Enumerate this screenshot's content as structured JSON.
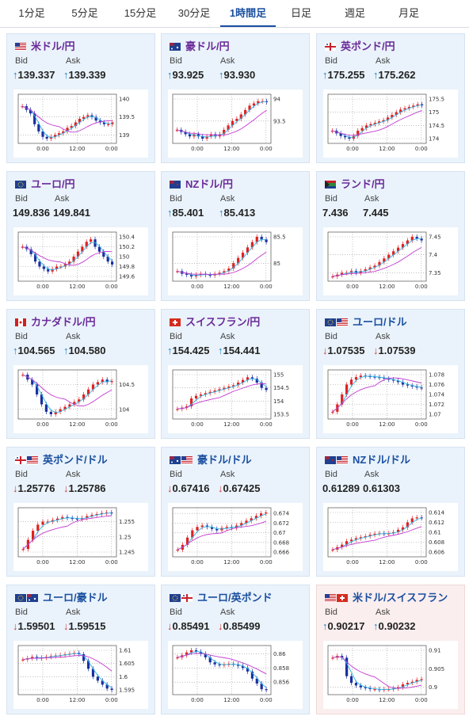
{
  "tabs": [
    {
      "label": "1分足",
      "active": false
    },
    {
      "label": "5分足",
      "active": false
    },
    {
      "label": "15分足",
      "active": false
    },
    {
      "label": "30分足",
      "active": false
    },
    {
      "label": "1時間足",
      "active": true
    },
    {
      "label": "日足",
      "active": false
    },
    {
      "label": "週足",
      "active": false
    },
    {
      "label": "月足",
      "active": false
    }
  ],
  "colors": {
    "up": "#1b7fc4",
    "down": "#d23b3b",
    "ma_long": "#c23ad0",
    "ma_short": "#2ab4e6",
    "candle_up": "#e02020",
    "candle_down": "#1a2fa0"
  },
  "cards": [
    {
      "name": "米ドル/円",
      "flag": "us",
      "bid_label": "Bid",
      "ask_label": "Ask",
      "bid": "139.337",
      "ask": "139.339",
      "dir": "up",
      "title_color": "purple",
      "chart_data": {
        "type": "candlestick",
        "ylabels": [
          "140",
          "139.5",
          "139"
        ],
        "xlabels": [
          "0:00",
          "12:00",
          "0:00"
        ],
        "closes": [
          139.8,
          139.7,
          139.6,
          139.3,
          139.1,
          138.95,
          138.9,
          138.95,
          139.0,
          139.05,
          139.1,
          139.2,
          139.25,
          139.35,
          139.45,
          139.5,
          139.55,
          139.5,
          139.4,
          139.35,
          139.3,
          139.3,
          139.35
        ]
      }
    },
    {
      "name": "豪ドル/円",
      "flag": "au",
      "bid_label": "Bid",
      "ask_label": "Ask",
      "bid": "93.925",
      "ask": "93.930",
      "dir": "up",
      "title_color": "purple",
      "chart_data": {
        "type": "candlestick",
        "ylabels": [
          "94",
          "93.5"
        ],
        "xlabels": [
          "0:00",
          "12:00",
          "0:00"
        ],
        "closes": [
          93.3,
          93.25,
          93.2,
          93.15,
          93.2,
          93.15,
          93.1,
          93.15,
          93.2,
          93.15,
          93.2,
          93.3,
          93.4,
          93.5,
          93.55,
          93.65,
          93.75,
          93.85,
          93.9,
          93.95,
          93.95,
          93.93
        ]
      }
    },
    {
      "name": "英ポンド/円",
      "flag": "uk",
      "bid_label": "Bid",
      "ask_label": "Ask",
      "bid": "175.255",
      "ask": "175.262",
      "dir": "up",
      "title_color": "purple",
      "chart_data": {
        "type": "candlestick",
        "ylabels": [
          "175.5",
          "175",
          "174.5",
          "174"
        ],
        "xlabels": [
          "0:00",
          "12:00",
          "0:00"
        ],
        "closes": [
          174.3,
          174.2,
          174.1,
          174.05,
          174.0,
          174.1,
          174.3,
          174.4,
          174.5,
          174.55,
          174.6,
          174.65,
          174.7,
          174.8,
          174.9,
          175.0,
          175.1,
          175.15,
          175.2,
          175.25,
          175.3,
          175.26
        ]
      }
    },
    {
      "name": "ユーロ/円",
      "flag": "eu",
      "bid_label": "Bid",
      "ask_label": "Ask",
      "bid": "149.836",
      "ask": "149.841",
      "dir": "none",
      "title_color": "purple",
      "chart_data": {
        "type": "candlestick",
        "ylabels": [
          "150.4",
          "150.2",
          "150",
          "149.8",
          "149.6"
        ],
        "xlabels": [
          "0:00",
          "12:00",
          "0:00"
        ],
        "closes": [
          150.2,
          150.15,
          150.05,
          149.9,
          149.8,
          149.75,
          149.7,
          149.75,
          149.8,
          149.8,
          149.85,
          149.9,
          150.0,
          150.1,
          150.2,
          150.3,
          150.35,
          150.2,
          150.1,
          150.0,
          149.9,
          149.84
        ]
      }
    },
    {
      "name": "NZドル/円",
      "flag": "nz",
      "bid_label": "Bid",
      "ask_label": "Ask",
      "bid": "85.401",
      "ask": "85.413",
      "dir": "up",
      "title_color": "purple",
      "chart_data": {
        "type": "candlestick",
        "ylabels": [
          "85.5",
          "85"
        ],
        "xlabels": [
          "0:00",
          "12:00",
          "0:00"
        ],
        "closes": [
          84.85,
          84.8,
          84.78,
          84.75,
          84.78,
          84.8,
          84.78,
          84.77,
          84.8,
          84.82,
          84.85,
          84.9,
          85.0,
          85.1,
          85.2,
          85.3,
          85.4,
          85.5,
          85.45,
          85.4
        ]
      }
    },
    {
      "name": "ランド/円",
      "flag": "za",
      "bid_label": "Bid",
      "ask_label": "Ask",
      "bid": "7.436",
      "ask": "7.445",
      "dir": "none",
      "title_color": "purple",
      "chart_data": {
        "type": "candlestick",
        "ylabels": [
          "7.45",
          "7.4",
          "7.35"
        ],
        "xlabels": [
          "0:00",
          "12:00",
          "0:00"
        ],
        "closes": [
          7.34,
          7.345,
          7.35,
          7.35,
          7.355,
          7.35,
          7.355,
          7.36,
          7.365,
          7.37,
          7.38,
          7.39,
          7.4,
          7.41,
          7.42,
          7.43,
          7.44,
          7.45,
          7.445,
          7.44
        ]
      }
    },
    {
      "name": "カナダドル/円",
      "flag": "ca",
      "bid_label": "Bid",
      "ask_label": "Ask",
      "bid": "104.565",
      "ask": "104.580",
      "dir": "up",
      "title_color": "purple",
      "chart_data": {
        "type": "candlestick",
        "ylabels": [
          "104.5",
          "104"
        ],
        "xlabels": [
          "0:00",
          "12:00",
          "0:00"
        ],
        "closes": [
          104.7,
          104.6,
          104.5,
          104.3,
          104.1,
          103.95,
          103.9,
          103.95,
          104.0,
          104.05,
          104.1,
          104.15,
          104.2,
          104.3,
          104.4,
          104.5,
          104.55,
          104.6,
          104.55,
          104.57
        ]
      }
    },
    {
      "name": "スイスフラン/円",
      "flag": "ch",
      "bid_label": "Bid",
      "ask_label": "Ask",
      "bid": "154.425",
      "ask": "154.441",
      "dir": "up",
      "title_color": "purple",
      "chart_data": {
        "type": "candlestick",
        "ylabels": [
          "155",
          "154.5",
          "154",
          "153.5"
        ],
        "xlabels": [
          "0:00",
          "12:00",
          "0:00"
        ],
        "closes": [
          153.7,
          153.75,
          153.8,
          154.1,
          154.2,
          154.25,
          154.3,
          154.35,
          154.4,
          154.45,
          154.5,
          154.55,
          154.6,
          154.7,
          154.8,
          154.9,
          154.85,
          154.7,
          154.5,
          154.42
        ]
      }
    },
    {
      "name": "ユーロ/ドル",
      "flag": "euus",
      "bid_label": "Bid",
      "ask_label": "Ask",
      "bid": "1.07535",
      "ask": "1.07539",
      "dir": "down",
      "title_color": "blue",
      "chart_data": {
        "type": "candlestick",
        "ylabels": [
          "1.078",
          "1.076",
          "1.074",
          "1.072",
          "1.07"
        ],
        "xlabels": [
          "0:00",
          "12:00",
          "0:00"
        ],
        "closes": [
          1.0705,
          1.072,
          1.074,
          1.076,
          1.077,
          1.0775,
          1.0778,
          1.0777,
          1.0776,
          1.0775,
          1.0774,
          1.0772,
          1.077,
          1.0768,
          1.0765,
          1.076,
          1.0758,
          1.0756,
          1.0754,
          1.0753
        ]
      }
    },
    {
      "name": "英ポンド/ドル",
      "flag": "ukus",
      "bid_label": "Bid",
      "ask_label": "Ask",
      "bid": "1.25776",
      "ask": "1.25786",
      "dir": "down",
      "title_color": "blue",
      "chart_data": {
        "type": "candlestick",
        "ylabels": [
          "1.255",
          "1.25",
          "1.245"
        ],
        "xlabels": [
          "0:00",
          "12:00",
          "0:00"
        ],
        "closes": [
          1.246,
          1.249,
          1.252,
          1.254,
          1.255,
          1.255,
          1.2555,
          1.256,
          1.2565,
          1.2562,
          1.256,
          1.2558,
          1.2562,
          1.2568,
          1.2572,
          1.2575,
          1.2578,
          1.258,
          1.2578
        ]
      }
    },
    {
      "name": "豪ドル/ドル",
      "flag": "auus",
      "bid_label": "Bid",
      "ask_label": "Ask",
      "bid": "0.67416",
      "ask": "0.67425",
      "dir": "down",
      "title_color": "blue",
      "chart_data": {
        "type": "candlestick",
        "ylabels": [
          "0.674",
          "0.672",
          "0.67",
          "0.668",
          "0.666"
        ],
        "xlabels": [
          "0:00",
          "12:00",
          "0:00"
        ],
        "closes": [
          0.6665,
          0.6675,
          0.669,
          0.6705,
          0.6712,
          0.6715,
          0.6712,
          0.6708,
          0.6705,
          0.671,
          0.6712,
          0.671,
          0.6715,
          0.672,
          0.6725,
          0.673,
          0.6735,
          0.674,
          0.6742
        ]
      }
    },
    {
      "name": "NZドル/ドル",
      "flag": "nzus",
      "bid_label": "Bid",
      "ask_label": "Ask",
      "bid": "0.61289",
      "ask": "0.61303",
      "dir": "none",
      "title_color": "blue",
      "chart_data": {
        "type": "candlestick",
        "ylabels": [
          "0.614",
          "0.612",
          "0.61",
          "0.608",
          "0.606"
        ],
        "xlabels": [
          "0:00",
          "12:00",
          "0:00"
        ],
        "closes": [
          0.6065,
          0.607,
          0.6075,
          0.6082,
          0.6085,
          0.6088,
          0.609,
          0.6092,
          0.6095,
          0.6097,
          0.6098,
          0.6097,
          0.6098,
          0.61,
          0.6105,
          0.611,
          0.612,
          0.6128,
          0.613,
          0.6129
        ]
      }
    },
    {
      "name": "ユーロ/豪ドル",
      "flag": "euau",
      "bid_label": "Bid",
      "ask_label": "Ask",
      "bid": "1.59501",
      "ask": "1.59515",
      "dir": "down",
      "title_color": "blue",
      "chart_data": {
        "type": "candlestick",
        "ylabels": [
          "1.61",
          "1.605",
          "1.6",
          "1.595"
        ],
        "xlabels": [
          "0:00",
          "12:00",
          "0:00"
        ],
        "closes": [
          1.6065,
          1.607,
          1.6075,
          1.607,
          1.6072,
          1.6075,
          1.6078,
          1.608,
          1.6082,
          1.6085,
          1.6087,
          1.609,
          1.6085,
          1.606,
          1.603,
          1.6,
          1.5985,
          1.597,
          1.5955,
          1.595
        ]
      }
    },
    {
      "name": "ユーロ/英ポンド",
      "flag": "euuk",
      "bid_label": "Bid",
      "ask_label": "Ask",
      "bid": "0.85491",
      "ask": "0.85499",
      "dir": "down",
      "title_color": "blue",
      "chart_data": {
        "type": "candlestick",
        "ylabels": [
          "0.86",
          "0.858",
          "0.856"
        ],
        "xlabels": [
          "0:00",
          "12:00",
          "0:00"
        ],
        "closes": [
          0.8595,
          0.8598,
          0.8602,
          0.8605,
          0.8603,
          0.86,
          0.8595,
          0.8588,
          0.8585,
          0.8584,
          0.8585,
          0.8586,
          0.8585,
          0.8583,
          0.858,
          0.8575,
          0.8565,
          0.8558,
          0.855,
          0.8549
        ]
      }
    },
    {
      "name": "米ドル/スイスフラン",
      "flag": "usch",
      "bid_label": "Bid",
      "ask_label": "Ask",
      "bid": "0.90217",
      "ask": "0.90232",
      "dir": "up",
      "title_color": "blue",
      "chart_data": {
        "type": "candlestick",
        "ylabels": [
          "0.91",
          "0.905",
          "0.9"
        ],
        "xlabels": [
          "0:00",
          "12:00",
          "0:00"
        ],
        "closes": [
          0.908,
          0.9085,
          0.908,
          0.903,
          0.9012,
          0.9005,
          0.9,
          0.8998,
          0.8995,
          0.8995,
          0.8993,
          0.8995,
          0.8995,
          0.8997,
          0.9,
          0.9008,
          0.9012,
          0.9015,
          0.902,
          0.9022
        ]
      }
    }
  ]
}
